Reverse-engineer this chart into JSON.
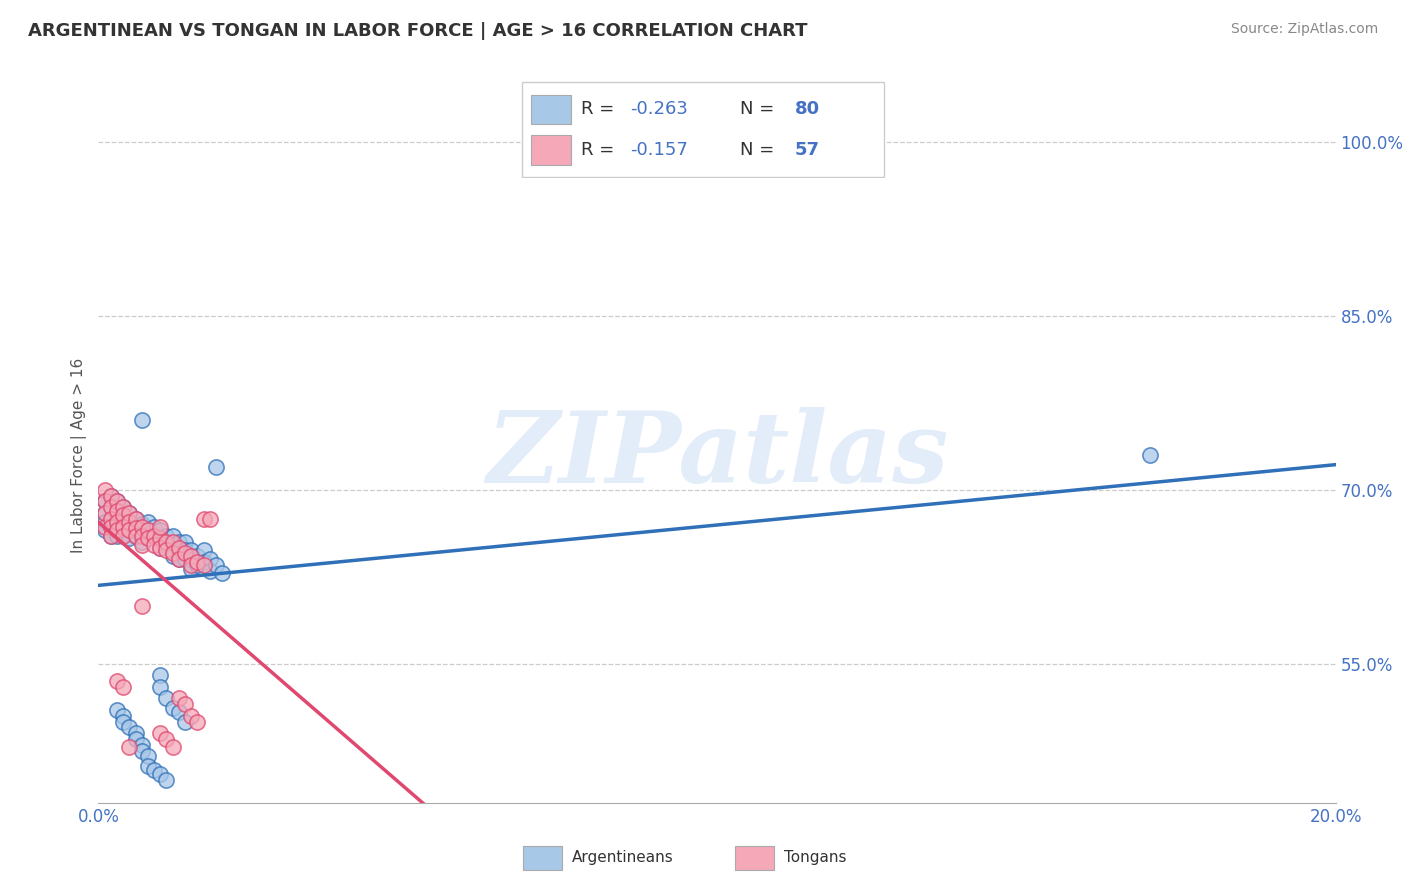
{
  "title": "ARGENTINEAN VS TONGAN IN LABOR FORCE | AGE > 16 CORRELATION CHART",
  "source": "Source: ZipAtlas.com",
  "ylabel": "In Labor Force | Age > 16",
  "ytick_values": [
    0.55,
    0.7,
    0.85,
    1.0
  ],
  "ytick_labels": [
    "55.0%",
    "70.0%",
    "85.0%",
    "100.0%"
  ],
  "xlim": [
    0.0,
    0.2
  ],
  "ylim": [
    0.43,
    1.03
  ],
  "xtick_left": "0.0%",
  "xtick_right": "20.0%",
  "blue_color": "#a8c8e8",
  "pink_color": "#f4a8b8",
  "blue_line_color": "#3070b8",
  "pink_line_color": "#e04870",
  "blue_scatter": [
    [
      0.001,
      0.69
    ],
    [
      0.001,
      0.68
    ],
    [
      0.001,
      0.672
    ],
    [
      0.001,
      0.665
    ],
    [
      0.002,
      0.695
    ],
    [
      0.002,
      0.685
    ],
    [
      0.002,
      0.675
    ],
    [
      0.002,
      0.668
    ],
    [
      0.002,
      0.66
    ],
    [
      0.003,
      0.69
    ],
    [
      0.003,
      0.682
    ],
    [
      0.003,
      0.675
    ],
    [
      0.003,
      0.668
    ],
    [
      0.003,
      0.66
    ],
    [
      0.004,
      0.685
    ],
    [
      0.004,
      0.678
    ],
    [
      0.004,
      0.67
    ],
    [
      0.004,
      0.662
    ],
    [
      0.005,
      0.68
    ],
    [
      0.005,
      0.672
    ],
    [
      0.005,
      0.665
    ],
    [
      0.005,
      0.658
    ],
    [
      0.006,
      0.675
    ],
    [
      0.006,
      0.668
    ],
    [
      0.006,
      0.66
    ],
    [
      0.007,
      0.76
    ],
    [
      0.007,
      0.67
    ],
    [
      0.007,
      0.662
    ],
    [
      0.007,
      0.655
    ],
    [
      0.008,
      0.672
    ],
    [
      0.008,
      0.665
    ],
    [
      0.008,
      0.658
    ],
    [
      0.009,
      0.668
    ],
    [
      0.009,
      0.66
    ],
    [
      0.01,
      0.665
    ],
    [
      0.01,
      0.658
    ],
    [
      0.01,
      0.65
    ],
    [
      0.011,
      0.66
    ],
    [
      0.011,
      0.652
    ],
    [
      0.012,
      0.66
    ],
    [
      0.012,
      0.652
    ],
    [
      0.012,
      0.643
    ],
    [
      0.013,
      0.655
    ],
    [
      0.013,
      0.648
    ],
    [
      0.013,
      0.64
    ],
    [
      0.014,
      0.655
    ],
    [
      0.014,
      0.648
    ],
    [
      0.014,
      0.64
    ],
    [
      0.015,
      0.648
    ],
    [
      0.015,
      0.64
    ],
    [
      0.015,
      0.632
    ],
    [
      0.016,
      0.643
    ],
    [
      0.016,
      0.635
    ],
    [
      0.017,
      0.648
    ],
    [
      0.017,
      0.638
    ],
    [
      0.018,
      0.64
    ],
    [
      0.018,
      0.63
    ],
    [
      0.019,
      0.72
    ],
    [
      0.019,
      0.635
    ],
    [
      0.02,
      0.628
    ],
    [
      0.003,
      0.51
    ],
    [
      0.004,
      0.505
    ],
    [
      0.004,
      0.5
    ],
    [
      0.005,
      0.495
    ],
    [
      0.006,
      0.49
    ],
    [
      0.006,
      0.485
    ],
    [
      0.007,
      0.48
    ],
    [
      0.007,
      0.475
    ],
    [
      0.008,
      0.47
    ],
    [
      0.008,
      0.462
    ],
    [
      0.009,
      0.458
    ],
    [
      0.01,
      0.455
    ],
    [
      0.011,
      0.45
    ],
    [
      0.01,
      0.54
    ],
    [
      0.01,
      0.53
    ],
    [
      0.011,
      0.52
    ],
    [
      0.012,
      0.512
    ],
    [
      0.013,
      0.508
    ],
    [
      0.014,
      0.5
    ],
    [
      0.17,
      0.73
    ]
  ],
  "pink_scatter": [
    [
      0.001,
      0.7
    ],
    [
      0.001,
      0.69
    ],
    [
      0.001,
      0.68
    ],
    [
      0.001,
      0.668
    ],
    [
      0.002,
      0.695
    ],
    [
      0.002,
      0.685
    ],
    [
      0.002,
      0.675
    ],
    [
      0.002,
      0.668
    ],
    [
      0.002,
      0.66
    ],
    [
      0.003,
      0.69
    ],
    [
      0.003,
      0.682
    ],
    [
      0.003,
      0.672
    ],
    [
      0.003,
      0.665
    ],
    [
      0.004,
      0.685
    ],
    [
      0.004,
      0.678
    ],
    [
      0.004,
      0.668
    ],
    [
      0.004,
      0.66
    ],
    [
      0.005,
      0.68
    ],
    [
      0.005,
      0.672
    ],
    [
      0.005,
      0.665
    ],
    [
      0.006,
      0.675
    ],
    [
      0.006,
      0.667
    ],
    [
      0.006,
      0.66
    ],
    [
      0.007,
      0.668
    ],
    [
      0.007,
      0.66
    ],
    [
      0.007,
      0.652
    ],
    [
      0.008,
      0.665
    ],
    [
      0.008,
      0.658
    ],
    [
      0.009,
      0.66
    ],
    [
      0.009,
      0.652
    ],
    [
      0.01,
      0.658
    ],
    [
      0.01,
      0.65
    ],
    [
      0.01,
      0.668
    ],
    [
      0.011,
      0.655
    ],
    [
      0.011,
      0.648
    ],
    [
      0.012,
      0.655
    ],
    [
      0.012,
      0.645
    ],
    [
      0.013,
      0.65
    ],
    [
      0.013,
      0.64
    ],
    [
      0.014,
      0.645
    ],
    [
      0.015,
      0.643
    ],
    [
      0.015,
      0.635
    ],
    [
      0.016,
      0.638
    ],
    [
      0.017,
      0.675
    ],
    [
      0.017,
      0.635
    ],
    [
      0.018,
      0.675
    ],
    [
      0.003,
      0.535
    ],
    [
      0.004,
      0.53
    ],
    [
      0.005,
      0.478
    ],
    [
      0.007,
      0.6
    ],
    [
      0.01,
      0.49
    ],
    [
      0.011,
      0.485
    ],
    [
      0.012,
      0.478
    ],
    [
      0.013,
      0.52
    ],
    [
      0.014,
      0.515
    ],
    [
      0.015,
      0.505
    ],
    [
      0.016,
      0.5
    ]
  ],
  "background_color": "#ffffff",
  "grid_color": "#cccccc",
  "watermark": "ZIPatlas",
  "title_color": "#333333",
  "source_color": "#888888",
  "tick_color": "#4472c4",
  "ylabel_color": "#555555"
}
